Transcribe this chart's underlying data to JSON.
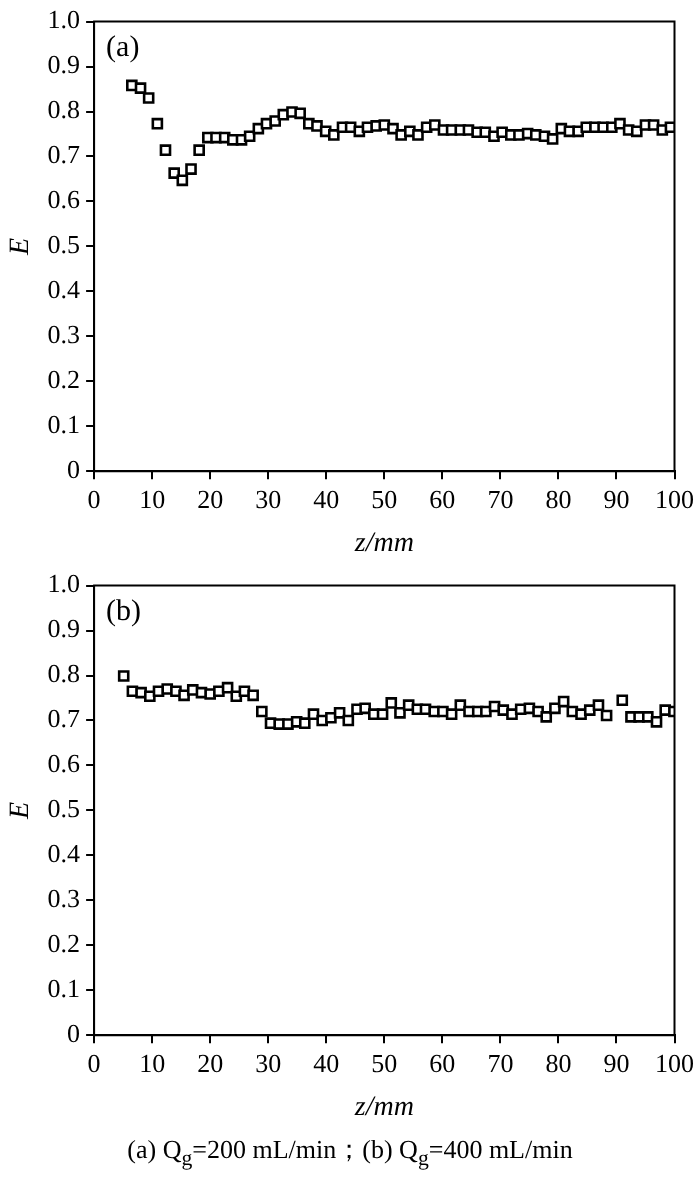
{
  "chart_data": [
    {
      "type": "scatter",
      "xlabel": "z/mm",
      "ylabel": "E",
      "annotations": [
        "(a)"
      ],
      "marker": "square",
      "grid": false,
      "legend": false,
      "xlim": [
        0,
        100
      ],
      "xticks": [
        0,
        10,
        20,
        30,
        40,
        50,
        60,
        70,
        80,
        90,
        100
      ],
      "ylim": [
        0,
        1
      ],
      "yticks": [
        0,
        0.1,
        0.2,
        0.3,
        0.4,
        0.5,
        0.6,
        0.7,
        0.8,
        0.9,
        {
          "value": 1,
          "label": "1.0"
        }
      ],
      "series": [
        {
          "color": "#000000",
          "x": [
            6.5,
            8.0,
            9.4,
            10.9,
            12.3,
            13.8,
            15.2,
            16.7,
            18.1,
            19.6,
            21.0,
            22.5,
            23.9,
            25.4,
            26.8,
            28.3,
            29.7,
            31.2,
            32.6,
            34.1,
            35.5,
            37.0,
            38.4,
            39.9,
            41.3,
            42.8,
            44.2,
            45.7,
            47.1,
            48.6,
            50.0,
            51.5,
            52.9,
            54.4,
            55.8,
            57.3,
            58.7,
            60.2,
            61.6,
            63.1,
            64.5,
            66.0,
            67.4,
            68.9,
            70.3,
            71.8,
            73.2,
            74.7,
            76.1,
            77.6,
            79.0,
            80.5,
            81.9,
            83.4,
            84.8,
            86.3,
            87.7,
            89.2,
            90.6,
            92.1,
            93.5,
            95.0,
            96.4,
            97.9,
            99.3
          ],
          "values": [
            0.858,
            0.852,
            0.83,
            0.773,
            0.714,
            0.663,
            0.647,
            0.672,
            0.714,
            0.742,
            0.742,
            0.742,
            0.737,
            0.737,
            0.745,
            0.762,
            0.773,
            0.779,
            0.793,
            0.799,
            0.796,
            0.773,
            0.768,
            0.756,
            0.748,
            0.765,
            0.765,
            0.756,
            0.765,
            0.768,
            0.77,
            0.762,
            0.748,
            0.756,
            0.748,
            0.765,
            0.77,
            0.759,
            0.759,
            0.759,
            0.759,
            0.754,
            0.754,
            0.745,
            0.754,
            0.748,
            0.748,
            0.751,
            0.748,
            0.745,
            0.739,
            0.762,
            0.756,
            0.756,
            0.765,
            0.765,
            0.765,
            0.765,
            0.773,
            0.759,
            0.756,
            0.77,
            0.77,
            0.759,
            0.765
          ]
        }
      ]
    },
    {
      "type": "scatter",
      "xlabel": "z/mm",
      "ylabel": "E",
      "annotations": [
        "(b)",
        "(a) Q$_{g}$=200 mL/min；(b) Q$_{g}$=400 mL/min"
      ],
      "marker": "square",
      "grid": false,
      "legend": false,
      "xlim": [
        0,
        100
      ],
      "xticks": [
        0,
        10,
        20,
        30,
        40,
        50,
        60,
        70,
        80,
        90,
        100
      ],
      "ylim": [
        0,
        1
      ],
      "yticks": [
        0,
        0.1,
        0.2,
        0.3,
        0.4,
        0.5,
        0.6,
        0.7,
        0.8,
        0.9,
        {
          "value": 1,
          "label": "1.0"
        }
      ],
      "series": [
        {
          "color": "#000000",
          "x": [
            5.1,
            6.6,
            8.1,
            9.6,
            11.1,
            12.6,
            14.1,
            15.5,
            17.0,
            18.5,
            20.0,
            21.5,
            23.0,
            24.5,
            25.9,
            27.4,
            28.9,
            30.4,
            31.9,
            33.4,
            34.9,
            36.3,
            37.8,
            39.3,
            40.8,
            42.3,
            43.8,
            45.3,
            46.7,
            48.2,
            49.7,
            51.2,
            52.7,
            54.2,
            55.7,
            57.1,
            58.6,
            60.1,
            61.6,
            63.1,
            64.6,
            66.1,
            67.5,
            69.0,
            70.5,
            72.0,
            73.5,
            75.0,
            76.5,
            77.9,
            79.4,
            80.9,
            82.4,
            83.9,
            85.4,
            86.9,
            88.3,
            91.0,
            92.5,
            93.9,
            95.4,
            96.9,
            98.4,
            99.9
          ],
          "values": [
            0.799,
            0.765,
            0.762,
            0.754,
            0.765,
            0.77,
            0.765,
            0.756,
            0.768,
            0.762,
            0.759,
            0.765,
            0.773,
            0.754,
            0.765,
            0.756,
            0.72,
            0.694,
            0.692,
            0.692,
            0.697,
            0.694,
            0.714,
            0.7,
            0.706,
            0.717,
            0.7,
            0.725,
            0.727,
            0.714,
            0.714,
            0.739,
            0.717,
            0.734,
            0.725,
            0.725,
            0.72,
            0.72,
            0.714,
            0.734,
            0.72,
            0.72,
            0.72,
            0.731,
            0.723,
            0.714,
            0.725,
            0.727,
            0.72,
            0.708,
            0.727,
            0.742,
            0.72,
            0.714,
            0.723,
            0.734,
            0.711,
            0.745,
            0.708,
            0.708,
            0.708,
            0.697,
            0.723,
            0.72
          ]
        }
      ]
    }
  ]
}
